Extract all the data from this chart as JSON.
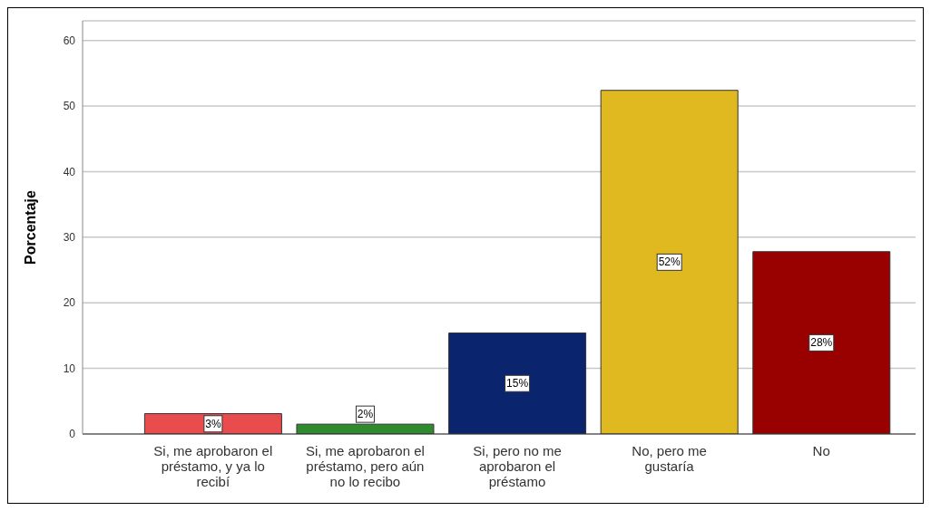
{
  "chart_data": {
    "type": "bar",
    "ylabel": "Porcentaje",
    "categories": [
      "Si, me aprobaron el préstamo, y ya lo recibí",
      "Si, me aprobaron el préstamo, pero aún no lo recibo",
      "Si, pero no me aprobaron el préstamo",
      "No, pero me gustaría",
      "No"
    ],
    "values": [
      3.1,
      1.5,
      15.4,
      52.4,
      27.8
    ],
    "colors": [
      "#e84c4c",
      "#2e8b2e",
      "#0a246e",
      "#e0b820",
      "#990000"
    ],
    "value_labels": [
      "3%",
      "2%",
      "15%",
      "52%",
      "28%"
    ],
    "ylim": [
      0,
      63
    ],
    "yticks": [
      0,
      10,
      20,
      30,
      40,
      50,
      60
    ],
    "grid": "y"
  }
}
